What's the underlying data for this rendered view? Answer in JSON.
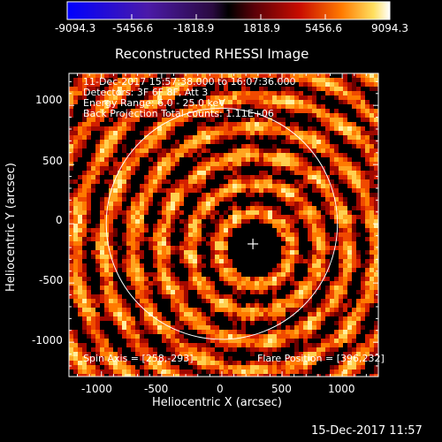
{
  "colorbar": {
    "ticks": [
      "-9094.3",
      "-5456.6",
      "-1818.9",
      "1818.9",
      "5456.6",
      "9094.3"
    ]
  },
  "plot": {
    "title": "Reconstructed RHESSI Image",
    "xlabel": "Heliocentric X (arcsec)",
    "ylabel": "Heliocentric Y (arcsec)",
    "x_ticks": [
      "-1000",
      "-500",
      "0",
      "500",
      "1000"
    ],
    "y_ticks": [
      "1000",
      "500",
      "0",
      "-500",
      "-1000"
    ],
    "info_lines": [
      "11-Dec-2017 15:57:38.000 to 16:07:36.000",
      "Detectors: 3F 6F 8F, Att 3",
      "Energy Range: 6.0 - 25.0 keV",
      "Back Projection     Total counts: 1.11E+06"
    ],
    "spin_axis": "Spin Axis = [258,-293]",
    "flare_position": "Flare Position = [396,232]"
  },
  "footer": {
    "date": "15-Dec-2017 11:57"
  },
  "colors": {
    "background": "#000000",
    "axis": "#ffffff",
    "limb_circle": "#ffffff"
  },
  "image_data": {
    "x_range": [
      -1270,
      1300
    ],
    "y_range": [
      -1290,
      1270
    ],
    "limb_center": [
      0,
      0
    ],
    "limb_radius": 960,
    "flare_center": [
      258,
      -170
    ],
    "dark_core_radius": 230
  }
}
